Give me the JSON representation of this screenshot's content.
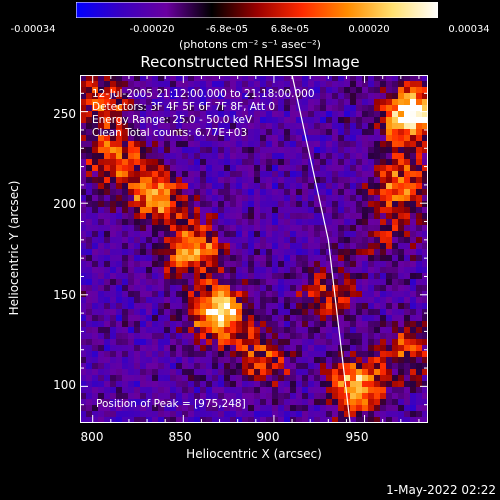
{
  "colorbar": {
    "ticks": [
      "-0.00034",
      "-0.00020",
      "-6.8e-05",
      "6.8e-05",
      "0.00020",
      "0.00034"
    ],
    "unit_label": "(photons cm⁻² s⁻¹ asec⁻²)",
    "colors": [
      "#0000ff",
      "#3a00c0",
      "#6a00a0",
      "#000000",
      "#9a0000",
      "#ff2a00",
      "#ff8c00",
      "#ffe070",
      "#ffffff"
    ]
  },
  "header": {
    "title": "Reconstructed RHESSI Image"
  },
  "info": {
    "time": "12-Jul-2005 21:12:00.000 to 21:18:00.000",
    "detectors": "Detectors: 3F 4F 5F 6F 7F 8F, Att 0",
    "energy": "Energy Range: 25.0 - 50.0 keV",
    "method": "Clean      Total counts: 6.77E+03",
    "peak": "Position of Peak = [975,248]"
  },
  "footer": {
    "timestamp": "1-May-2022 02:22"
  },
  "chart_data": {
    "type": "heatmap",
    "title": "Reconstructed RHESSI Image",
    "xlabel": "Heliocentric X (arcsec)",
    "ylabel": "Heliocentric Y (arcsec)",
    "xlim": [
      793,
      985
    ],
    "ylim": [
      80,
      270
    ],
    "x_ticks": [
      "800",
      "850",
      "900",
      "950"
    ],
    "y_ticks": [
      "100",
      "150",
      "200",
      "250"
    ],
    "zlim": [
      -0.00034,
      0.00034
    ],
    "peak": [
      975,
      248
    ],
    "limb_line": [
      [
        910,
        270
      ],
      [
        930,
        180
      ],
      [
        942,
        80
      ]
    ],
    "bright_regions": [
      {
        "x": 870,
        "y": 140,
        "level": 0.0003
      },
      {
        "x": 855,
        "y": 175,
        "level": 0.00024
      },
      {
        "x": 835,
        "y": 205,
        "level": 0.00022
      },
      {
        "x": 812,
        "y": 225,
        "level": 0.00018
      },
      {
        "x": 805,
        "y": 255,
        "level": 0.00016
      },
      {
        "x": 895,
        "y": 115,
        "level": 0.00016
      },
      {
        "x": 945,
        "y": 100,
        "level": 0.00026
      },
      {
        "x": 930,
        "y": 150,
        "level": 0.00015
      },
      {
        "x": 975,
        "y": 248,
        "level": 0.00034
      },
      {
        "x": 970,
        "y": 210,
        "level": 0.0002
      },
      {
        "x": 975,
        "y": 120,
        "level": 0.00016
      },
      {
        "x": 960,
        "y": 180,
        "level": 0.0001
      }
    ],
    "grid": false
  }
}
